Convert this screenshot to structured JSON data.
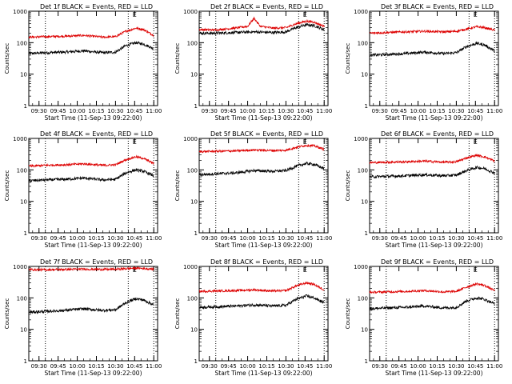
{
  "figure": {
    "ylabel": "Counts/sec",
    "xlabel": "Start Time (11-Sep-13 09:22:00)",
    "flag_label": "E",
    "colors": {
      "events": "#000000",
      "lld": "#dd0000",
      "axes": "#000000",
      "background": "#ffffff"
    }
  },
  "chart_data": [
    {
      "type": "line",
      "title": "Det 1f BLACK = Events, RED = LLD",
      "xlabel": "Start Time (11-Sep-13 09:22:00)",
      "ylabel": "Counts/sec",
      "yscale": "log",
      "ylim": [
        1,
        1000
      ],
      "xlim": [
        "09:22",
        "11:03"
      ],
      "xticks": [
        "09:30",
        "09:45",
        "10:00",
        "10:15",
        "10:30",
        "10:45",
        "11:00"
      ],
      "yticks": [
        "1",
        "10",
        "100",
        "1000"
      ],
      "vlines": [
        "09:35",
        "10:40",
        "11:00"
      ],
      "series": [
        {
          "name": "Events",
          "color": "#000000",
          "x": [
            "09:22",
            "09:35",
            "09:50",
            "10:05",
            "10:20",
            "10:30",
            "10:38",
            "10:46",
            "10:52",
            "11:00"
          ],
          "y": [
            45,
            48,
            50,
            55,
            48,
            50,
            80,
            100,
            90,
            65
          ]
        },
        {
          "name": "LLD",
          "color": "#dd0000",
          "x": [
            "09:22",
            "09:35",
            "09:50",
            "10:05",
            "10:20",
            "10:30",
            "10:38",
            "10:46",
            "10:52",
            "11:00"
          ],
          "y": [
            150,
            155,
            160,
            170,
            150,
            155,
            230,
            290,
            260,
            170
          ]
        }
      ]
    },
    {
      "type": "line",
      "title": "Det 2f BLACK = Events, RED = LLD",
      "xlabel": "Start Time (11-Sep-13 09:22:00)",
      "ylabel": "Counts/sec",
      "yscale": "log",
      "ylim": [
        1,
        1000
      ],
      "xlim": [
        "09:22",
        "11:03"
      ],
      "xticks": [
        "09:30",
        "09:45",
        "10:00",
        "10:15",
        "10:30",
        "10:45",
        "11:00"
      ],
      "yticks": [
        "1",
        "10",
        "100",
        "1000"
      ],
      "vlines": [
        "09:35",
        "10:40",
        "11:00"
      ],
      "series": [
        {
          "name": "Events",
          "color": "#000000",
          "x": [
            "09:22",
            "09:35",
            "09:50",
            "10:05",
            "10:20",
            "10:30",
            "10:38",
            "10:46",
            "10:52",
            "11:00"
          ],
          "y": [
            200,
            200,
            210,
            220,
            210,
            220,
            300,
            370,
            350,
            260
          ]
        },
        {
          "name": "LLD",
          "color": "#dd0000",
          "x": [
            "09:22",
            "09:35",
            "09:50",
            "10:00",
            "10:05",
            "10:10",
            "10:20",
            "10:30",
            "10:38",
            "10:46",
            "10:52",
            "11:00"
          ],
          "y": [
            260,
            255,
            290,
            330,
            600,
            330,
            290,
            300,
            400,
            480,
            450,
            330
          ]
        }
      ]
    },
    {
      "type": "line",
      "title": "Det 3f BLACK = Events, RED = LLD",
      "xlabel": "Start Time (11-Sep-13 09:22:00)",
      "ylabel": "Counts/sec",
      "yscale": "log",
      "ylim": [
        1,
        1000
      ],
      "xlim": [
        "09:22",
        "11:03"
      ],
      "xticks": [
        "09:30",
        "09:45",
        "10:00",
        "10:15",
        "10:30",
        "10:45",
        "11:00"
      ],
      "yticks": [
        "1",
        "10",
        "100",
        "1000"
      ],
      "vlines": [
        "09:35",
        "10:40",
        "11:00"
      ],
      "series": [
        {
          "name": "Events",
          "color": "#000000",
          "x": [
            "09:22",
            "09:35",
            "09:50",
            "10:05",
            "10:20",
            "10:30",
            "10:38",
            "10:46",
            "10:52",
            "11:00"
          ],
          "y": [
            40,
            42,
            45,
            50,
            45,
            48,
            75,
            95,
            85,
            55
          ]
        },
        {
          "name": "LLD",
          "color": "#dd0000",
          "x": [
            "09:22",
            "09:35",
            "09:50",
            "10:05",
            "10:20",
            "10:30",
            "10:38",
            "10:46",
            "10:52",
            "11:00"
          ],
          "y": [
            200,
            210,
            220,
            230,
            220,
            230,
            270,
            320,
            300,
            250
          ]
        }
      ]
    },
    {
      "type": "line",
      "title": "Det 4f BLACK = Events, RED = LLD",
      "xlabel": "Start Time (11-Sep-13 09:22:00)",
      "ylabel": "Counts/sec",
      "yscale": "log",
      "ylim": [
        1,
        1000
      ],
      "xlim": [
        "09:22",
        "11:03"
      ],
      "xticks": [
        "09:30",
        "09:45",
        "10:00",
        "10:15",
        "10:30",
        "10:45",
        "11:00"
      ],
      "yticks": [
        "1",
        "10",
        "100",
        "1000"
      ],
      "vlines": [
        "09:35",
        "10:40",
        "11:00"
      ],
      "series": [
        {
          "name": "Events",
          "color": "#000000",
          "x": [
            "09:22",
            "09:35",
            "09:50",
            "10:05",
            "10:20",
            "10:30",
            "10:38",
            "10:46",
            "10:52",
            "11:00"
          ],
          "y": [
            45,
            48,
            50,
            55,
            48,
            50,
            80,
            100,
            90,
            65
          ]
        },
        {
          "name": "LLD",
          "color": "#dd0000",
          "x": [
            "09:22",
            "09:35",
            "09:50",
            "10:05",
            "10:20",
            "10:30",
            "10:38",
            "10:46",
            "10:52",
            "11:00"
          ],
          "y": [
            130,
            140,
            145,
            155,
            140,
            145,
            210,
            260,
            230,
            160
          ]
        }
      ]
    },
    {
      "type": "line",
      "title": "Det 5f BLACK = Events, RED = LLD",
      "xlabel": "Start Time (11-Sep-13 09:22:00)",
      "ylabel": "Counts/sec",
      "yscale": "log",
      "ylim": [
        1,
        1000
      ],
      "xlim": [
        "09:22",
        "11:03"
      ],
      "xticks": [
        "09:30",
        "09:45",
        "10:00",
        "10:15",
        "10:30",
        "10:45",
        "11:00"
      ],
      "yticks": [
        "1",
        "10",
        "100",
        "1000"
      ],
      "vlines": [
        "09:35",
        "10:40",
        "11:00"
      ],
      "series": [
        {
          "name": "Events",
          "color": "#000000",
          "x": [
            "09:22",
            "09:35",
            "09:50",
            "10:05",
            "10:20",
            "10:30",
            "10:38",
            "10:46",
            "10:52",
            "11:00"
          ],
          "y": [
            70,
            75,
            80,
            95,
            90,
            95,
            130,
            160,
            150,
            110
          ]
        },
        {
          "name": "LLD",
          "color": "#dd0000",
          "x": [
            "09:22",
            "09:35",
            "09:50",
            "10:05",
            "10:20",
            "10:30",
            "10:38",
            "10:46",
            "10:52",
            "11:00"
          ],
          "y": [
            380,
            390,
            400,
            430,
            410,
            420,
            520,
            600,
            580,
            450
          ]
        }
      ]
    },
    {
      "type": "line",
      "title": "Det 6f BLACK = Events, RED = LLD",
      "xlabel": "Start Time (11-Sep-13 09:22:00)",
      "ylabel": "Counts/sec",
      "yscale": "log",
      "ylim": [
        1,
        1000
      ],
      "xlim": [
        "09:22",
        "11:03"
      ],
      "xticks": [
        "09:30",
        "09:45",
        "10:00",
        "10:15",
        "10:30",
        "10:45",
        "11:00"
      ],
      "yticks": [
        "1",
        "10",
        "100",
        "1000"
      ],
      "vlines": [
        "09:35",
        "10:40",
        "11:00"
      ],
      "series": [
        {
          "name": "Events",
          "color": "#000000",
          "x": [
            "09:22",
            "09:35",
            "09:50",
            "10:05",
            "10:20",
            "10:30",
            "10:38",
            "10:46",
            "10:52",
            "11:00"
          ],
          "y": [
            60,
            62,
            65,
            70,
            65,
            68,
            95,
            120,
            110,
            80
          ]
        },
        {
          "name": "LLD",
          "color": "#dd0000",
          "x": [
            "09:22",
            "09:35",
            "09:50",
            "10:05",
            "10:20",
            "10:30",
            "10:38",
            "10:46",
            "10:52",
            "11:00"
          ],
          "y": [
            170,
            175,
            180,
            190,
            175,
            180,
            240,
            290,
            260,
            190
          ]
        }
      ]
    },
    {
      "type": "line",
      "title": "Det 7f BLACK = Events, RED = LLD",
      "xlabel": "Start Time (11-Sep-13 09:22:00)",
      "ylabel": "Counts/sec",
      "yscale": "log",
      "ylim": [
        1,
        1000
      ],
      "xlim": [
        "09:22",
        "11:03"
      ],
      "xticks": [
        "09:30",
        "09:45",
        "10:00",
        "10:15",
        "10:30",
        "10:45",
        "11:00"
      ],
      "yticks": [
        "1",
        "10",
        "100",
        "1000"
      ],
      "vlines": [
        "09:35",
        "10:40",
        "11:00"
      ],
      "series": [
        {
          "name": "Events",
          "color": "#000000",
          "x": [
            "09:22",
            "09:35",
            "09:50",
            "10:05",
            "10:20",
            "10:30",
            "10:38",
            "10:46",
            "10:52",
            "11:00"
          ],
          "y": [
            35,
            37,
            40,
            45,
            40,
            42,
            70,
            95,
            85,
            60
          ]
        },
        {
          "name": "LLD",
          "color": "#dd0000",
          "x": [
            "09:22",
            "09:35",
            "09:50",
            "10:05",
            "10:20",
            "10:30",
            "10:38",
            "10:46",
            "10:52",
            "11:00"
          ],
          "y": [
            800,
            780,
            800,
            820,
            800,
            810,
            850,
            880,
            860,
            820
          ]
        }
      ]
    },
    {
      "type": "line",
      "title": "Det 8f BLACK = Events, RED = LLD",
      "xlabel": "Start Time (11-Sep-13 09:22:00)",
      "ylabel": "Counts/sec",
      "yscale": "log",
      "ylim": [
        1,
        1000
      ],
      "xlim": [
        "09:22",
        "11:03"
      ],
      "xticks": [
        "09:30",
        "09:45",
        "10:00",
        "10:15",
        "10:30",
        "10:45",
        "11:00"
      ],
      "yticks": [
        "1",
        "10",
        "100",
        "1000"
      ],
      "vlines": [
        "09:35",
        "10:40",
        "11:00"
      ],
      "series": [
        {
          "name": "Events",
          "color": "#000000",
          "x": [
            "09:22",
            "09:35",
            "09:50",
            "10:05",
            "10:20",
            "10:30",
            "10:38",
            "10:46",
            "10:52",
            "11:00"
          ],
          "y": [
            50,
            52,
            55,
            60,
            55,
            58,
            90,
            115,
            100,
            70
          ]
        },
        {
          "name": "LLD",
          "color": "#dd0000",
          "x": [
            "09:22",
            "09:35",
            "09:50",
            "10:05",
            "10:20",
            "10:30",
            "10:38",
            "10:46",
            "10:52",
            "11:00"
          ],
          "y": [
            160,
            165,
            170,
            180,
            165,
            170,
            240,
            300,
            270,
            180
          ]
        }
      ]
    },
    {
      "type": "line",
      "title": "Det 9f BLACK = Events, RED = LLD",
      "xlabel": "Start Time (11-Sep-13 09:22:00)",
      "ylabel": "Counts/sec",
      "yscale": "log",
      "ylim": [
        1,
        1000
      ],
      "xlim": [
        "09:22",
        "11:03"
      ],
      "xticks": [
        "09:30",
        "09:45",
        "10:00",
        "10:15",
        "10:30",
        "10:45",
        "11:00"
      ],
      "yticks": [
        "1",
        "10",
        "100",
        "1000"
      ],
      "vlines": [
        "09:35",
        "10:40",
        "11:00"
      ],
      "series": [
        {
          "name": "Events",
          "color": "#000000",
          "x": [
            "09:22",
            "09:35",
            "09:50",
            "10:05",
            "10:20",
            "10:30",
            "10:38",
            "10:46",
            "10:52",
            "11:00"
          ],
          "y": [
            45,
            48,
            50,
            55,
            48,
            50,
            80,
            100,
            90,
            65
          ]
        },
        {
          "name": "LLD",
          "color": "#dd0000",
          "x": [
            "09:22",
            "09:35",
            "09:50",
            "10:05",
            "10:20",
            "10:30",
            "10:38",
            "10:46",
            "10:52",
            "11:00"
          ],
          "y": [
            150,
            155,
            160,
            170,
            155,
            160,
            220,
            280,
            250,
            170
          ]
        }
      ]
    }
  ]
}
